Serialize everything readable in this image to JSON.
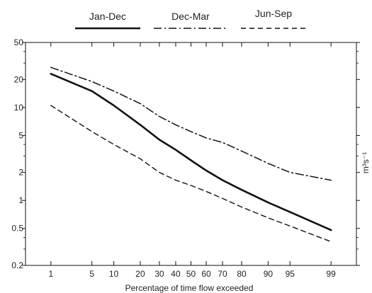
{
  "chart_data": {
    "type": "line",
    "xlabel": "Percentage of time flow exceeded",
    "ylabel": "m³s⁻¹",
    "x_scale": "normal-probability",
    "y_scale": "log",
    "xlim": [
      0.3,
      99.7
    ],
    "ylim": [
      0.2,
      50
    ],
    "x_ticks": [
      1,
      5,
      10,
      20,
      30,
      40,
      50,
      60,
      70,
      80,
      90,
      95,
      99
    ],
    "y_ticks": [
      0.2,
      0.5,
      1,
      2,
      5,
      10,
      20,
      50
    ],
    "y_tick_labels": [
      "0.2",
      "0.5",
      "1",
      "2",
      "5",
      "10",
      "20",
      "50"
    ],
    "legend_position": "top",
    "series": [
      {
        "name": "Jan-Dec",
        "style": "solid",
        "x": [
          1,
          5,
          10,
          20,
          30,
          40,
          50,
          60,
          70,
          80,
          90,
          95,
          99
        ],
        "y": [
          23,
          15,
          10.5,
          6.5,
          4.5,
          3.5,
          2.7,
          2.1,
          1.65,
          1.3,
          0.95,
          0.75,
          0.48
        ]
      },
      {
        "name": "Dec-Mar",
        "style": "dashdot",
        "x": [
          1,
          5,
          10,
          20,
          30,
          40,
          50,
          60,
          70,
          80,
          90,
          95,
          99
        ],
        "y": [
          27,
          19,
          15,
          11,
          8,
          6.5,
          5.5,
          4.7,
          4.2,
          3.4,
          2.5,
          2.0,
          1.65
        ]
      },
      {
        "name": "Jun-Sep",
        "style": "dashed",
        "x": [
          1,
          5,
          10,
          20,
          30,
          40,
          50,
          60,
          70,
          80,
          90,
          95,
          99
        ],
        "y": [
          10.5,
          5.5,
          4,
          2.8,
          2.0,
          1.65,
          1.45,
          1.25,
          1.05,
          0.85,
          0.65,
          0.53,
          0.36
        ]
      }
    ]
  }
}
